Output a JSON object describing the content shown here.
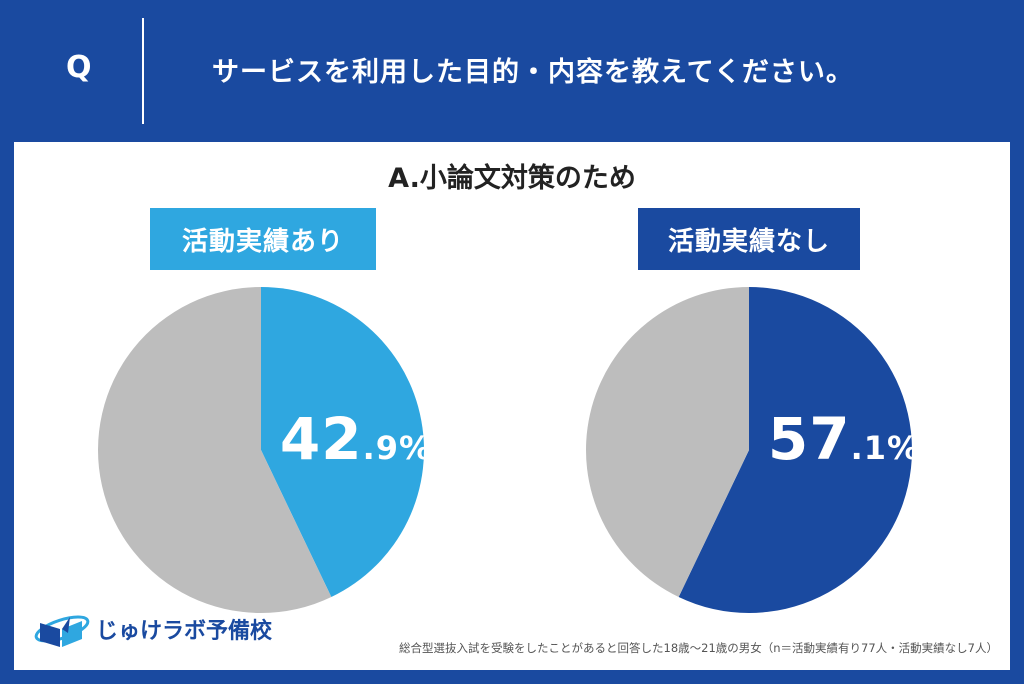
{
  "header": {
    "q_mark": "Q",
    "question": "サービスを利用した目的・内容を教えてください。"
  },
  "answer_title": "A.小論文対策のため",
  "groups": [
    {
      "badge": "活動実績あり",
      "value_int": "42",
      "value_dec": ".9%",
      "color": "#2fa7e0"
    },
    {
      "badge": "活動実績なし",
      "value_int": "57",
      "value_dec": ".1%",
      "color": "#1a4aa0"
    }
  ],
  "chart_data": [
    {
      "type": "pie",
      "title": "活動実績あり",
      "categories": [
        "活動実績あり",
        ""
      ],
      "values": [
        42.9,
        57.1
      ],
      "colors": [
        "#2fa7e0",
        "#bdbdbd"
      ]
    },
    {
      "type": "pie",
      "title": "活動実績なし",
      "categories": [
        "活動実績なし",
        ""
      ],
      "values": [
        57.1,
        42.9
      ],
      "colors": [
        "#1a4aa0",
        "#bdbdbd"
      ]
    }
  ],
  "logo": {
    "text": "じゅけラボ予備校"
  },
  "footnote": "総合型選抜入試を受験をしたことがあると回答した18歳～21歳の男女（n＝活動実績有り77人・活動実績なし7人）"
}
